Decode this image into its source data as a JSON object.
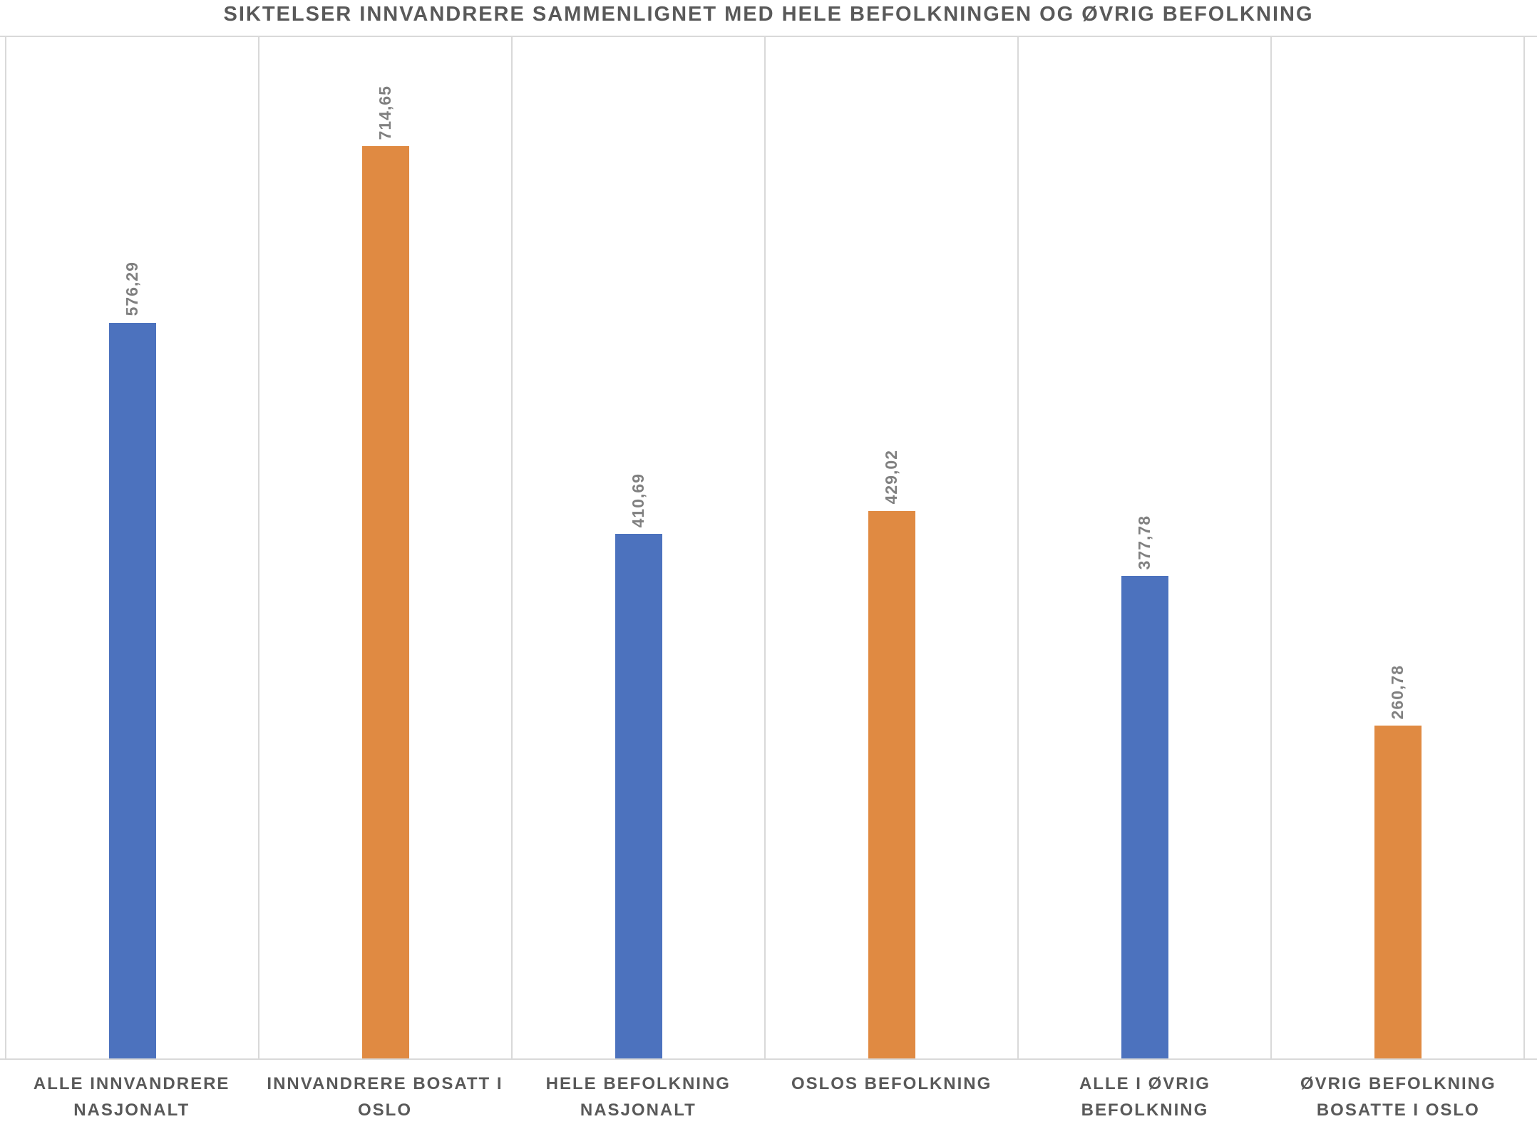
{
  "title": "SIKTELSER INNVANDRERE SAMMENLIGNET MED HELE BEFOLKNINGEN OG ØVRIG BEFOLKNING",
  "colors": {
    "bar_blue": "#4C72BE",
    "bar_orange": "#E08A42",
    "gridline": "#D9D9D9",
    "title_text": "#595959",
    "category_text": "#595959",
    "value_label_text": "#808080"
  },
  "chart_data": {
    "type": "bar",
    "title": "SIKTELSER INNVANDRERE SAMMENLIGNET MED HELE BEFOLKNINGEN OG ØVRIG BEFOLKNING",
    "categories": [
      "ALLE INNVANDRERE NASJONALT",
      "INNVANDRERE BOSATT I OSLO",
      "HELE BEFOLKNING NASJONALT",
      "OSLOS BEFOLKNING",
      "ALLE I ØVRIG BEFOLKNING",
      "ØVRIG BEFOLKNING BOSATTE I OSLO"
    ],
    "category_lines": [
      [
        "ALLE INNVANDRERE",
        "NASJONALT"
      ],
      [
        "INNVANDRERE BOSATT I",
        "OSLO"
      ],
      [
        "HELE BEFOLKNING",
        "NASJONALT"
      ],
      [
        "OSLOS BEFOLKNING",
        ""
      ],
      [
        "ALLE I ØVRIG",
        "BEFOLKNING"
      ],
      [
        "ØVRIG BEFOLKNING",
        "BOSATTE I OSLO"
      ]
    ],
    "values": [
      576.29,
      714.65,
      410.69,
      429.02,
      377.78,
      260.78
    ],
    "value_labels": [
      "576,29",
      "714,65",
      "410,69",
      "429,02",
      "377,78",
      "260,78"
    ],
    "bar_colors": [
      "#4C72BE",
      "#E08A42",
      "#4C72BE",
      "#E08A42",
      "#4C72BE",
      "#E08A42"
    ],
    "xlabel": "",
    "ylabel": "",
    "ylim": [
      0,
      800
    ],
    "grid": "vertical category separators only, no y-axis labels",
    "legend": "none",
    "value_label_orientation": "rotated 90 degrees, reading bottom to top"
  }
}
